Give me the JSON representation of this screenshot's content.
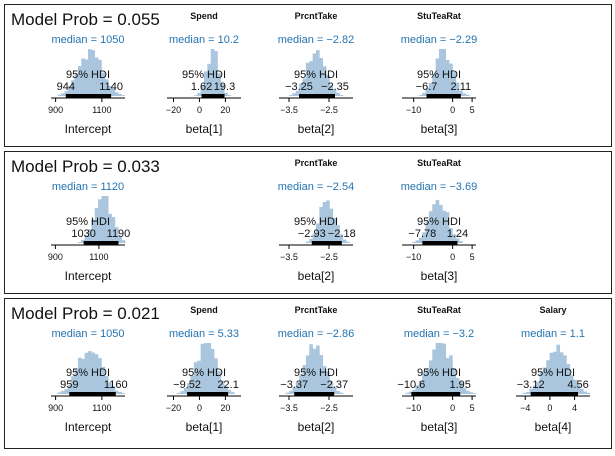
{
  "chart_data": [
    {
      "type": "histogram",
      "model_label": "Model Prob",
      "model_prob": "0.055",
      "columns": [
        {
          "title": "",
          "param": "Intercept",
          "median_label": "median",
          "median": "1050",
          "hdi_label": "95% HDI",
          "hdi_low": "944",
          "hdi_high": "1140",
          "xlim": [
            880,
            1200
          ],
          "ticks": [
            "900",
            "1100"
          ],
          "tick_values": [
            900,
            1100
          ],
          "median_value": 1050,
          "hdi": [
            944,
            1140
          ],
          "spread": 50
        },
        {
          "title": "Spend",
          "param": "beta[1]",
          "median_label": "median",
          "median": "10.2",
          "hdi_label": "95% HDI",
          "hdi_low": "1.62",
          "hdi_high": "19.3",
          "xlim": [
            -25,
            32
          ],
          "ticks": [
            "−20",
            "0",
            "20"
          ],
          "tick_values": [
            -20,
            0,
            20
          ],
          "median_value": 10.2,
          "hdi": [
            1.62,
            19.3
          ],
          "spread": 4.5
        },
        {
          "title": "PrcntTake",
          "param": "beta[2]",
          "median_label": "median",
          "median": "−2.82",
          "hdi_label": "95% HDI",
          "hdi_low": "−3.25",
          "hdi_high": "−2.35",
          "xlim": [
            -3.75,
            -1.9
          ],
          "ticks": [
            "−3.5",
            "−2.5"
          ],
          "tick_values": [
            -3.5,
            -2.5
          ],
          "median_value": -2.82,
          "hdi": [
            -3.25,
            -2.35
          ],
          "spread": 0.23
        },
        {
          "title": "StuTeaRat",
          "param": "beta[3]",
          "median_label": "median",
          "median": "−2.29",
          "hdi_label": "95% HDI",
          "hdi_low": "−6.7",
          "hdi_high": "2.11",
          "xlim": [
            -13,
            6
          ],
          "ticks": [
            "−10",
            "0",
            "5"
          ],
          "tick_values": [
            -10,
            0,
            5
          ],
          "median_value": -2.29,
          "hdi": [
            -6.7,
            2.11
          ],
          "spread": 2.2
        }
      ]
    },
    {
      "type": "histogram",
      "model_label": "Model Prob",
      "model_prob": "0.033",
      "columns": [
        {
          "title": "",
          "param": "Intercept",
          "median_label": "median",
          "median": "1120",
          "hdi_label": "95% HDI",
          "hdi_low": "1030",
          "hdi_high": "1190",
          "xlim": [
            880,
            1220
          ],
          "ticks": [
            "900",
            "1100"
          ],
          "tick_values": [
            900,
            1100
          ],
          "median_value": 1120,
          "hdi": [
            1030,
            1190
          ],
          "spread": 40
        },
        null,
        {
          "title": "PrcntTake",
          "param": "beta[2]",
          "median_label": "median",
          "median": "−2.54",
          "hdi_label": "95% HDI",
          "hdi_low": "−2.93",
          "hdi_high": "−2.18",
          "xlim": [
            -3.75,
            -1.9
          ],
          "ticks": [
            "−3.5",
            "−2.5"
          ],
          "tick_values": [
            -3.5,
            -2.5
          ],
          "median_value": -2.54,
          "hdi": [
            -2.93,
            -2.18
          ],
          "spread": 0.19
        },
        {
          "title": "StuTeaRat",
          "param": "beta[3]",
          "median_label": "median",
          "median": "−3.69",
          "hdi_label": "95% HDI",
          "hdi_low": "−7.78",
          "hdi_high": "1.24",
          "xlim": [
            -13,
            6
          ],
          "ticks": [
            "−10",
            "0",
            "5"
          ],
          "tick_values": [
            -10,
            0,
            5
          ],
          "median_value": -3.69,
          "hdi": [
            -7.78,
            1.24
          ],
          "spread": 2.3
        }
      ]
    },
    {
      "type": "histogram",
      "model_label": "Model Prob",
      "model_prob": "0.021",
      "columns": [
        {
          "title": "",
          "param": "Intercept",
          "median_label": "median",
          "median": "1050",
          "hdi_label": "95% HDI",
          "hdi_low": "959",
          "hdi_high": "1160",
          "xlim": [
            880,
            1200
          ],
          "ticks": [
            "900",
            "1100"
          ],
          "tick_values": [
            900,
            1100
          ],
          "median_value": 1050,
          "hdi": [
            959,
            1160
          ],
          "spread": 50
        },
        {
          "title": "Spend",
          "param": "beta[1]",
          "median_label": "median",
          "median": "5.33",
          "hdi_label": "95% HDI",
          "hdi_low": "−9.52",
          "hdi_high": "22.1",
          "xlim": [
            -25,
            32
          ],
          "ticks": [
            "−20",
            "0",
            "20"
          ],
          "tick_values": [
            -20,
            0,
            20
          ],
          "median_value": 5.33,
          "hdi": [
            -9.52,
            22.1
          ],
          "spread": 7.8
        },
        {
          "title": "PrcntTake",
          "param": "beta[2]",
          "median_label": "median",
          "median": "−2.86",
          "hdi_label": "95% HDI",
          "hdi_low": "−3.37",
          "hdi_high": "−2.37",
          "xlim": [
            -3.75,
            -1.9
          ],
          "ticks": [
            "−3.5",
            "−2.5"
          ],
          "tick_values": [
            -3.5,
            -2.5
          ],
          "median_value": -2.86,
          "hdi": [
            -3.37,
            -2.37
          ],
          "spread": 0.25
        },
        {
          "title": "StuTeaRat",
          "param": "beta[3]",
          "median_label": "median",
          "median": "−3.2",
          "hdi_label": "95% HDI",
          "hdi_low": "−10.6",
          "hdi_high": "1.95",
          "xlim": [
            -13,
            6
          ],
          "ticks": [
            "−10",
            "0",
            "5"
          ],
          "tick_values": [
            -10,
            0,
            5
          ],
          "median_value": -3.2,
          "hdi": [
            -10.6,
            1.95
          ],
          "spread": 3.1
        },
        {
          "title": "Salary",
          "param": "beta[4]",
          "median_label": "median",
          "median": "1.1",
          "hdi_label": "95% HDI",
          "hdi_low": "−3.12",
          "hdi_high": "4.56",
          "xlim": [
            -5.5,
            6.5
          ],
          "ticks": [
            "−4",
            "0",
            "4"
          ],
          "tick_values": [
            -4,
            0,
            4
          ],
          "median_value": 1.1,
          "hdi": [
            -3.12,
            4.56
          ],
          "spread": 1.9
        }
      ]
    }
  ],
  "colors": {
    "bars": "#a9c6de",
    "median_text": "#2474b2",
    "text": "#111111",
    "hdi_line": "#000000",
    "frame": "#222222"
  }
}
